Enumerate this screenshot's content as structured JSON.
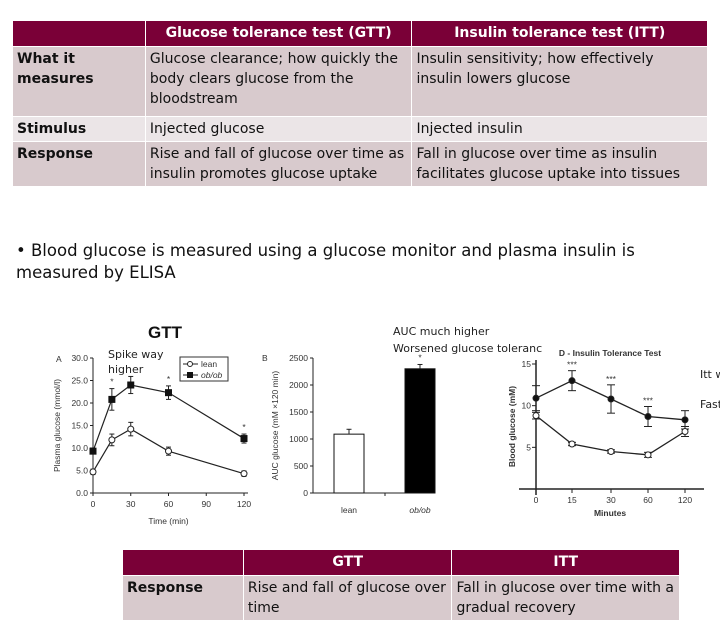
{
  "top_table": {
    "headers": [
      "",
      "Glucose tolerance test (GTT)",
      "Insulin tolerance test (ITT)"
    ],
    "rows": [
      {
        "label": "What it measures",
        "gtt": "Glucose clearance; how quickly the body clears glucose from the bloodstream",
        "itt": "Insulin sensitivity; how effectively insulin lowers glucose"
      },
      {
        "label": "Stimulus",
        "gtt": "Injected glucose",
        "itt": "Injected insulin"
      },
      {
        "label": "Response",
        "gtt": "Rise and fall of glucose over time as insulin promotes glucose uptake",
        "itt": "Fall in glucose over time as insulin facilitates glucose uptake into tissues"
      }
    ]
  },
  "bullet": "Blood glucose is measured using a glucose monitor and plasma insulin is measured by ELISA",
  "annotations": {
    "gtt_title": "GTT",
    "spike": [
      "Spike way",
      "higher"
    ],
    "auc": "AUC much higher",
    "worsened": "Worsened glucose toleranc",
    "itt_right_1": "Itt w",
    "itt_right_2": "Fast"
  },
  "colors": {
    "header": "#7a0037",
    "row_dark": "#d8cacd",
    "row_light": "#ebe5e7"
  },
  "chart_data": [
    {
      "type": "line",
      "panel": "A",
      "xlabel": "Time (min)",
      "ylabel": "Plasma glucose (mmol/l)",
      "x": [
        0,
        15,
        30,
        60,
        120
      ],
      "xticks": [
        "0",
        "30",
        "60",
        "90",
        "120"
      ],
      "yticks": [
        "0.0",
        "5.0",
        "10.0",
        "15.0",
        "20.0",
        "25.0",
        "30.0"
      ],
      "xlim": [
        0,
        120
      ],
      "ylim": [
        0,
        30
      ],
      "legend": "top-right",
      "series": [
        {
          "name": "lean",
          "marker": "open-circle",
          "values": [
            4.7,
            11.8,
            14.2,
            9.3,
            4.3
          ],
          "errors": [
            0.6,
            1.3,
            1.5,
            0.9,
            0.6
          ]
        },
        {
          "name": "ob/ob",
          "marker": "filled-square",
          "values": [
            9.3,
            20.8,
            24.0,
            22.3,
            12.1
          ],
          "errors": [
            0.6,
            2.4,
            1.9,
            1.5,
            1.0
          ]
        }
      ],
      "significance": [
        "",
        "*",
        "",
        "*",
        "*"
      ]
    },
    {
      "type": "bar",
      "panel": "B",
      "ylabel": "AUC glucose (mM ×120 min)",
      "categories": [
        "lean",
        "ob/ob"
      ],
      "values": [
        1090,
        2300
      ],
      "errors": [
        90,
        80
      ],
      "colors": [
        "#ffffff",
        "#000000"
      ],
      "yticks": [
        "0",
        "500",
        "1000",
        "1500",
        "2000",
        "2500"
      ],
      "ylim": [
        0,
        2500
      ],
      "significance": [
        "",
        "*"
      ]
    },
    {
      "type": "line",
      "title": "D - Insulin  Tolerance Test",
      "xlabel": "Minutes",
      "ylabel": "Blood glucose (mM)",
      "categories": [
        "0",
        "15",
        "30",
        "60",
        "120"
      ],
      "yticks": [
        "5",
        "10",
        "15"
      ],
      "ylim": [
        0,
        15
      ],
      "series": [
        {
          "marker": "filled-circle",
          "values": [
            10.9,
            13.0,
            10.8,
            8.7,
            8.3
          ],
          "errors": [
            1.5,
            1.2,
            1.7,
            1.2,
            1.1
          ]
        },
        {
          "marker": "open-circle",
          "values": [
            8.8,
            5.4,
            4.5,
            4.1,
            6.9
          ],
          "errors": [
            0.4,
            0.2,
            0.2,
            0.3,
            0.6
          ]
        }
      ],
      "significance": [
        "",
        "***",
        "***",
        "***",
        ""
      ]
    }
  ],
  "bottom_table": {
    "headers": [
      "",
      "GTT",
      "ITT"
    ],
    "rows": [
      {
        "label": "Response",
        "gtt": "Rise and fall of glucose over time",
        "itt": "Fall in glucose over time with a gradual recovery"
      }
    ]
  }
}
